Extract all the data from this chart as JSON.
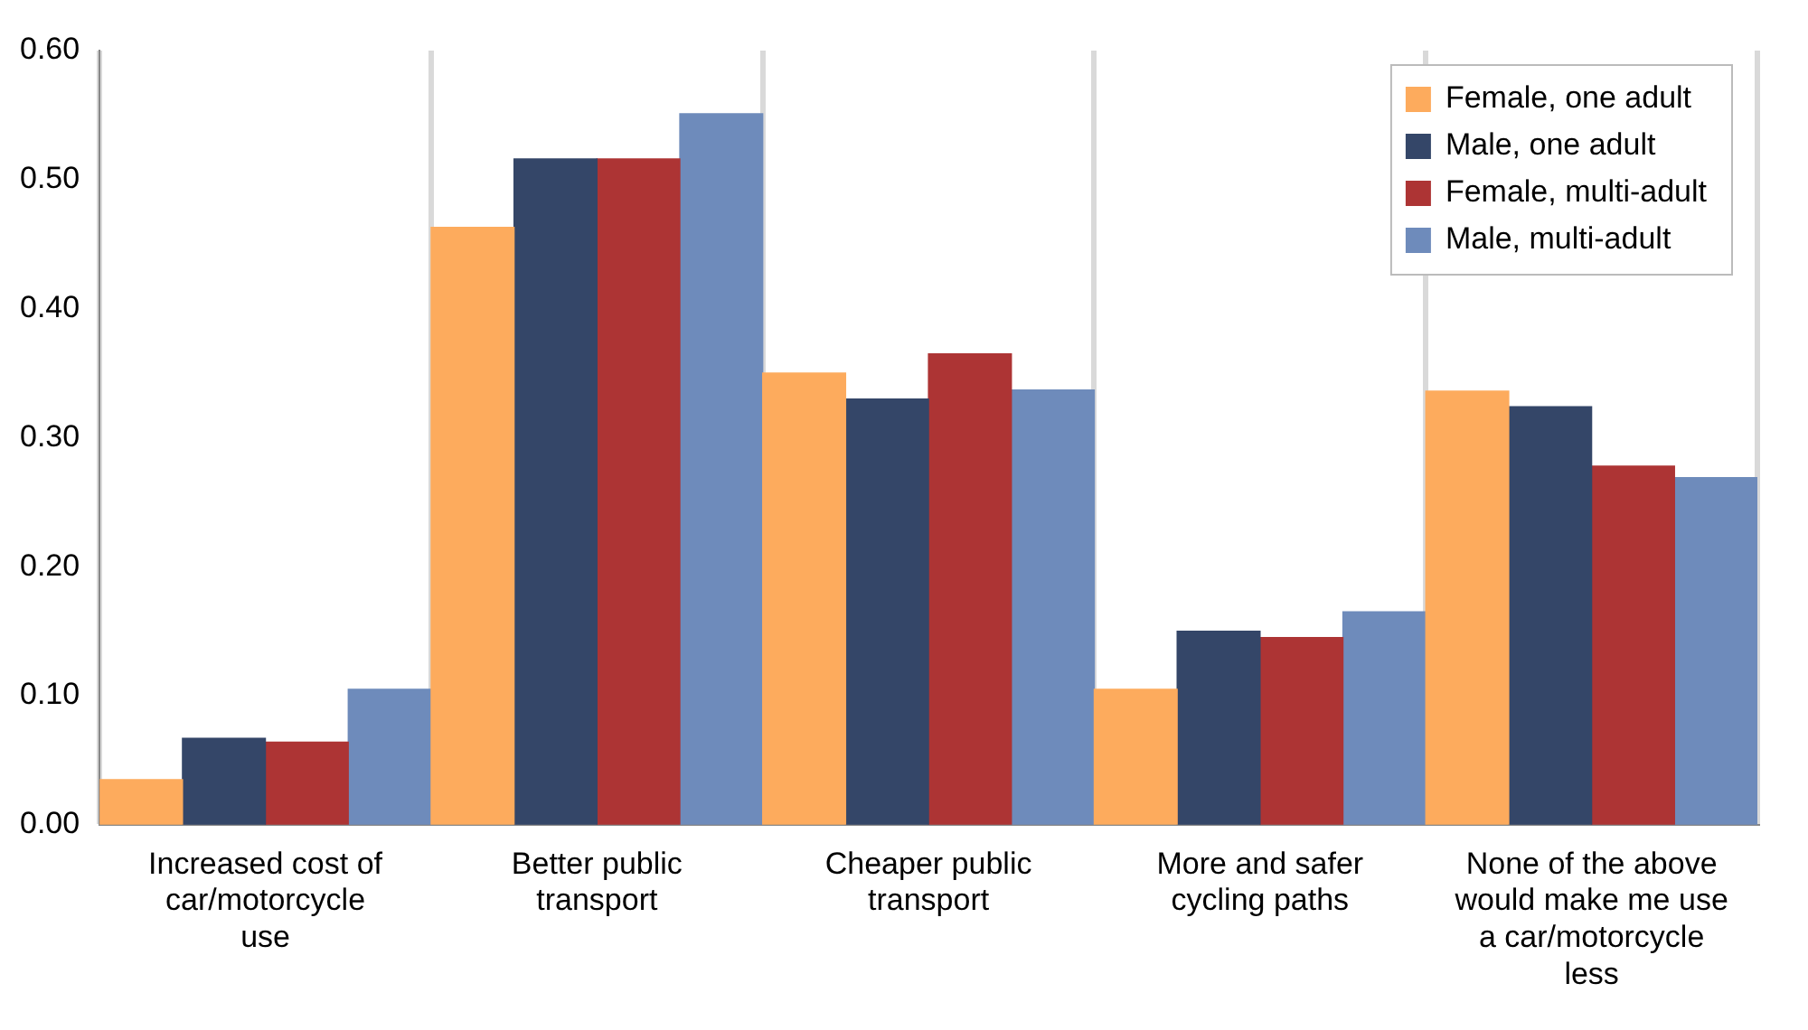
{
  "chart_data": {
    "type": "bar",
    "categories": [
      "Increased cost of car/motorcycle use",
      "Better public transport",
      "Cheaper public transport",
      "More and safer cycling paths",
      "None of the above would make me use a car/motorcycle less"
    ],
    "series": [
      {
        "name": "Female, one adult",
        "color": "#fdab5d",
        "values": [
          0.035,
          0.463,
          0.35,
          0.105,
          0.336
        ]
      },
      {
        "name": "Male, one adult",
        "color": "#344668",
        "values": [
          0.067,
          0.516,
          0.33,
          0.15,
          0.324
        ]
      },
      {
        "name": "Female, multi-adult",
        "color": "#ad3434",
        "values": [
          0.064,
          0.516,
          0.365,
          0.145,
          0.278
        ]
      },
      {
        "name": "Male, multi-adult",
        "color": "#6e8bbb",
        "values": [
          0.105,
          0.551,
          0.337,
          0.165,
          0.269
        ]
      }
    ],
    "ylim": [
      0,
      0.6
    ],
    "yticks": [
      {
        "value": 0,
        "label": "0.00"
      },
      {
        "value": 0.1,
        "label": "0.10"
      },
      {
        "value": 0.2,
        "label": "0.20"
      },
      {
        "value": 0.3,
        "label": "0.30"
      },
      {
        "value": 0.4,
        "label": "0.40"
      },
      {
        "value": 0.5,
        "label": "0.50"
      },
      {
        "value": 0.6,
        "label": "0.60"
      }
    ],
    "grid": "x",
    "legend": "top right"
  }
}
